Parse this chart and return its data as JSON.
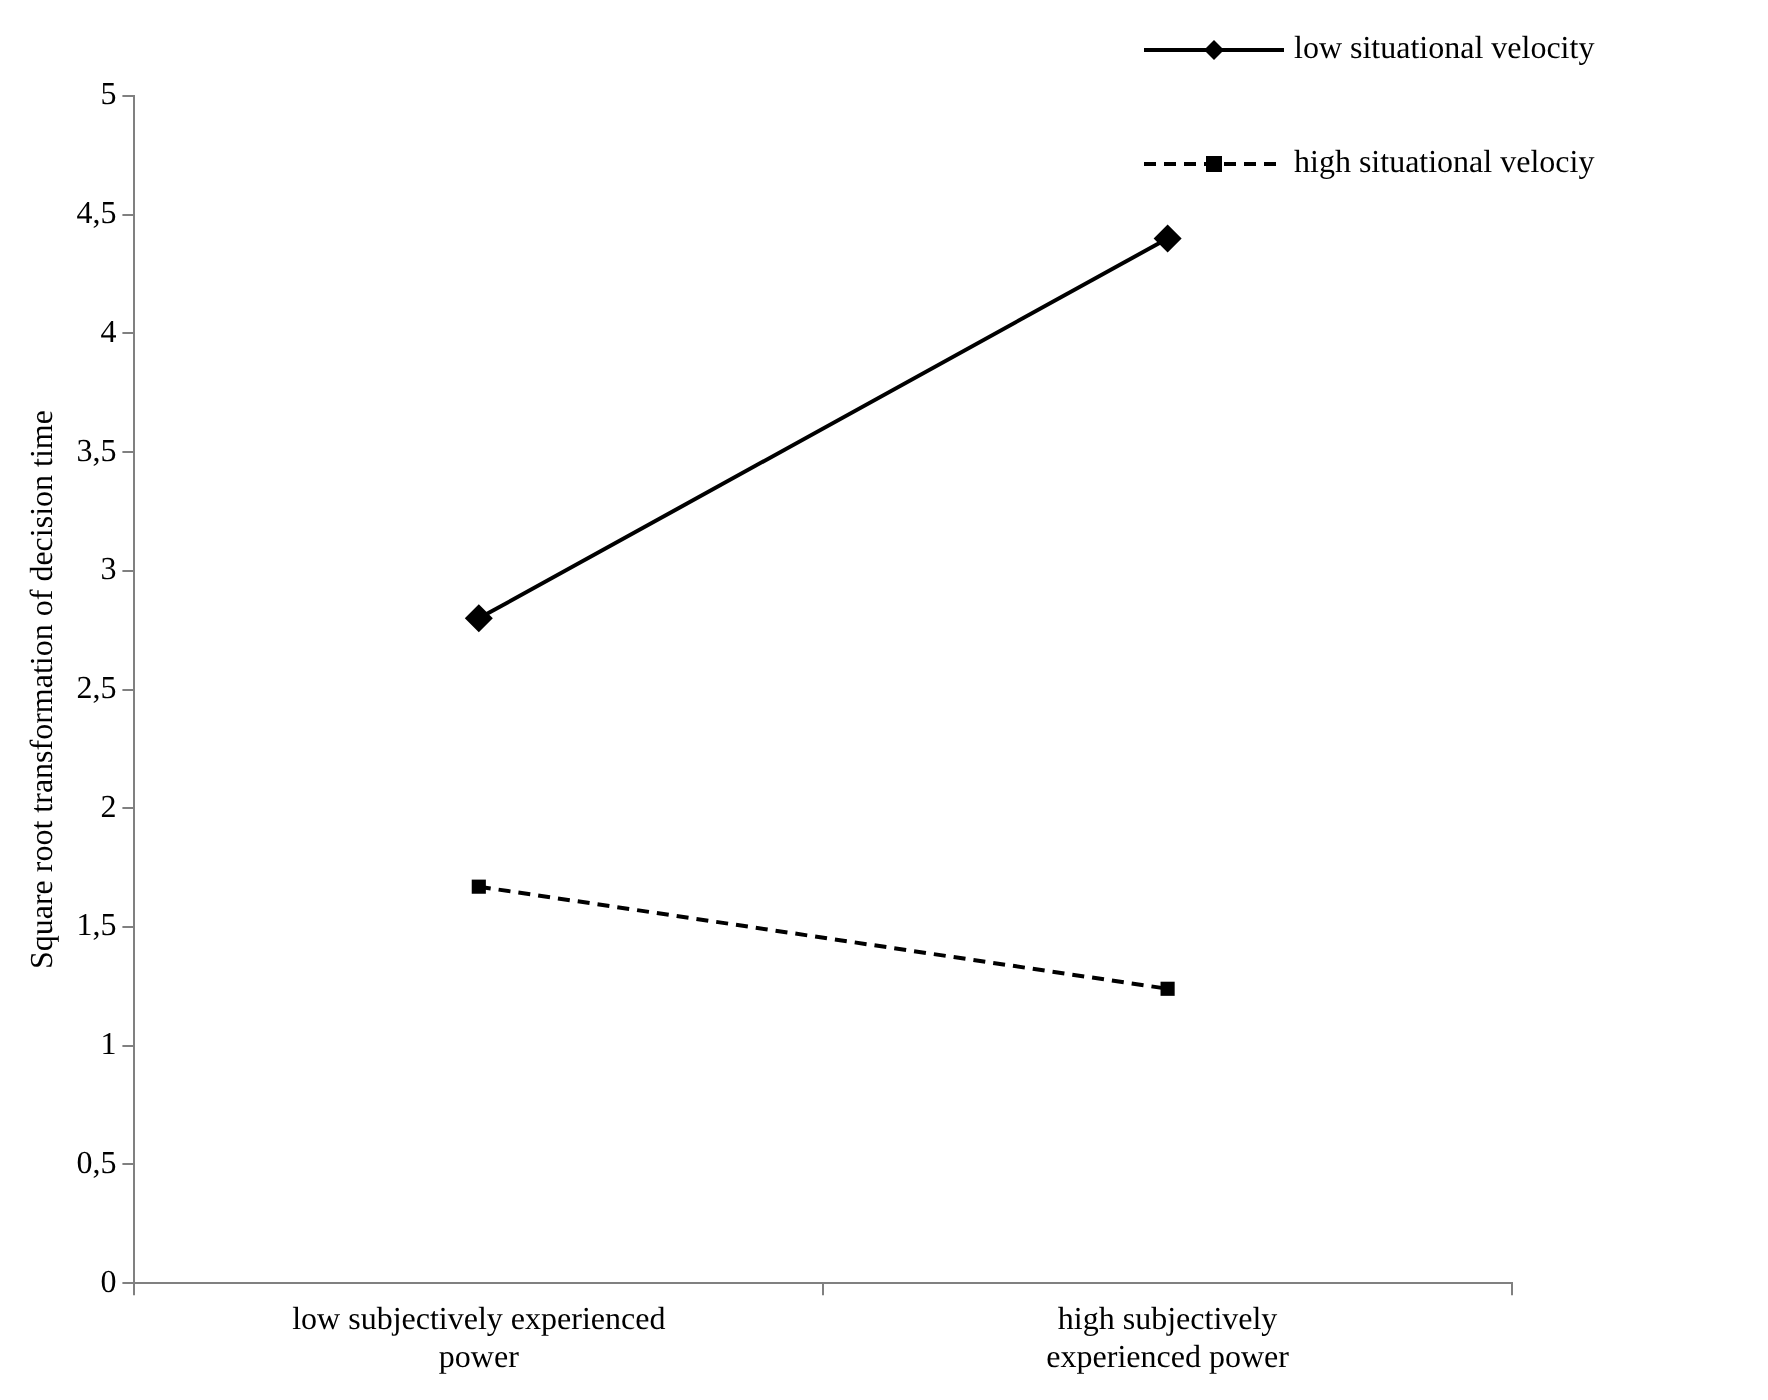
{
  "chart_data": {
    "type": "line",
    "ylabel": "Square root transformation of decision time",
    "categories": [
      "low subjectively experienced power",
      "high subjectively experienced power"
    ],
    "series": [
      {
        "name": "low situational velocity",
        "color": "#000000",
        "values": [
          2.8,
          4.4
        ],
        "marker": "diamond",
        "line_style": "solid"
      },
      {
        "name": "high situational velociy",
        "color": "#000000",
        "values": [
          1.67,
          1.24
        ],
        "marker": "square",
        "line_style": "dashed"
      }
    ],
    "ylim": [
      0,
      5
    ],
    "yticks": [
      0,
      {
        "value": 0.5,
        "label": "0,5"
      },
      1,
      {
        "value": 1.5,
        "label": "1,5"
      },
      2,
      {
        "value": 2.5,
        "label": "2,5"
      },
      3,
      {
        "value": 3.5,
        "label": "3,5"
      },
      4,
      {
        "value": 4.5,
        "label": "4,5"
      },
      5
    ],
    "grid": false,
    "legend": "top right"
  }
}
